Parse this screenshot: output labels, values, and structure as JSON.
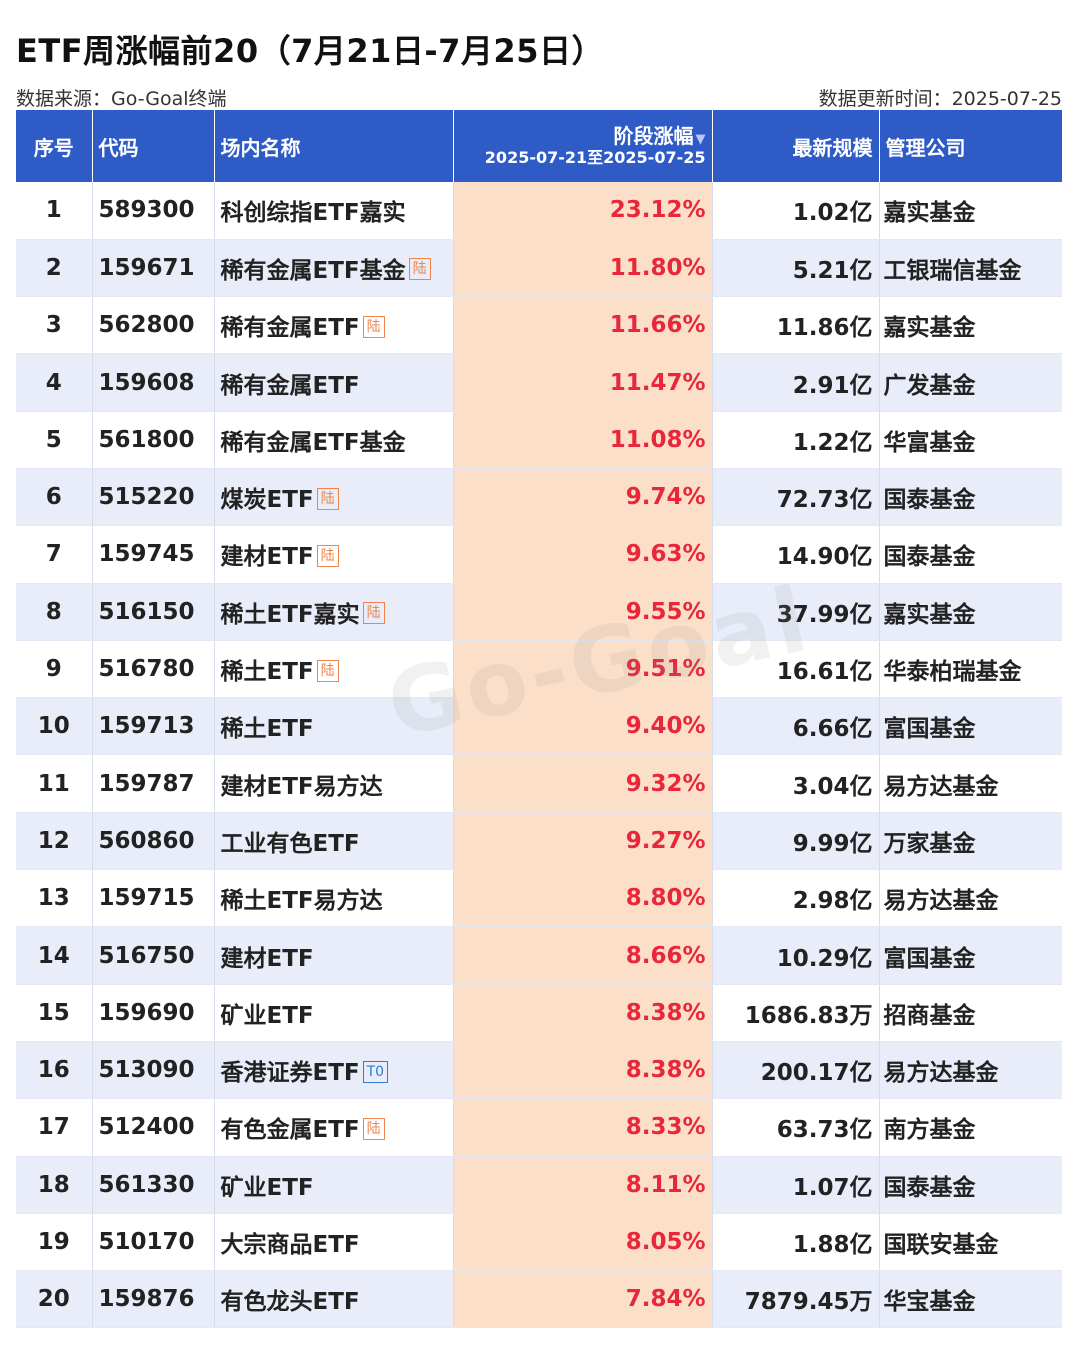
{
  "title": "ETF周涨幅前20（7月21日-7月25日）",
  "source": "数据来源：Go-Goal终端",
  "updated": "数据更新时间：2025-07-25",
  "watermark": "Go-Goal",
  "headers": {
    "idx": "序号",
    "code": "代码",
    "name": "场内名称",
    "change": "阶段涨幅",
    "change_sub": "2025-07-21至2025-07-25",
    "scale": "最新规模",
    "company": "管理公司"
  },
  "rows": [
    {
      "idx": "1",
      "code": "589300",
      "name": "科创综指ETF嘉实",
      "tag": "",
      "change": "23.12%",
      "scale": "1.02亿",
      "company": "嘉实基金"
    },
    {
      "idx": "2",
      "code": "159671",
      "name": "稀有金属ETF基金",
      "tag": "陆",
      "change": "11.80%",
      "scale": "5.21亿",
      "company": "工银瑞信基金"
    },
    {
      "idx": "3",
      "code": "562800",
      "name": "稀有金属ETF",
      "tag": "陆",
      "change": "11.66%",
      "scale": "11.86亿",
      "company": "嘉实基金"
    },
    {
      "idx": "4",
      "code": "159608",
      "name": "稀有金属ETF",
      "tag": "",
      "change": "11.47%",
      "scale": "2.91亿",
      "company": "广发基金"
    },
    {
      "idx": "5",
      "code": "561800",
      "name": "稀有金属ETF基金",
      "tag": "",
      "change": "11.08%",
      "scale": "1.22亿",
      "company": "华富基金"
    },
    {
      "idx": "6",
      "code": "515220",
      "name": "煤炭ETF",
      "tag": "陆",
      "change": "9.74%",
      "scale": "72.73亿",
      "company": "国泰基金"
    },
    {
      "idx": "7",
      "code": "159745",
      "name": "建材ETF",
      "tag": "陆",
      "change": "9.63%",
      "scale": "14.90亿",
      "company": "国泰基金"
    },
    {
      "idx": "8",
      "code": "516150",
      "name": "稀土ETF嘉实",
      "tag": "陆",
      "change": "9.55%",
      "scale": "37.99亿",
      "company": "嘉实基金"
    },
    {
      "idx": "9",
      "code": "516780",
      "name": "稀土ETF",
      "tag": "陆",
      "change": "9.51%",
      "scale": "16.61亿",
      "company": "华泰柏瑞基金"
    },
    {
      "idx": "10",
      "code": "159713",
      "name": "稀土ETF",
      "tag": "",
      "change": "9.40%",
      "scale": "6.66亿",
      "company": "富国基金"
    },
    {
      "idx": "11",
      "code": "159787",
      "name": "建材ETF易方达",
      "tag": "",
      "change": "9.32%",
      "scale": "3.04亿",
      "company": "易方达基金"
    },
    {
      "idx": "12",
      "code": "560860",
      "name": "工业有色ETF",
      "tag": "",
      "change": "9.27%",
      "scale": "9.99亿",
      "company": "万家基金"
    },
    {
      "idx": "13",
      "code": "159715",
      "name": "稀土ETF易方达",
      "tag": "",
      "change": "8.80%",
      "scale": "2.98亿",
      "company": "易方达基金"
    },
    {
      "idx": "14",
      "code": "516750",
      "name": "建材ETF",
      "tag": "",
      "change": "8.66%",
      "scale": "10.29亿",
      "company": "富国基金"
    },
    {
      "idx": "15",
      "code": "159690",
      "name": "矿业ETF",
      "tag": "",
      "change": "8.38%",
      "scale": "1686.83万",
      "company": "招商基金"
    },
    {
      "idx": "16",
      "code": "513090",
      "name": "香港证券ETF",
      "tag": "T0",
      "change": "8.38%",
      "scale": "200.17亿",
      "company": "易方达基金"
    },
    {
      "idx": "17",
      "code": "512400",
      "name": "有色金属ETF",
      "tag": "陆",
      "change": "8.33%",
      "scale": "63.73亿",
      "company": "南方基金"
    },
    {
      "idx": "18",
      "code": "561330",
      "name": "矿业ETF",
      "tag": "",
      "change": "8.11%",
      "scale": "1.07亿",
      "company": "国泰基金"
    },
    {
      "idx": "19",
      "code": "510170",
      "name": "大宗商品ETF",
      "tag": "",
      "change": "8.05%",
      "scale": "1.88亿",
      "company": "国联安基金"
    },
    {
      "idx": "20",
      "code": "159876",
      "name": "有色龙头ETF",
      "tag": "",
      "change": "7.84%",
      "scale": "7879.45万",
      "company": "华宝基金"
    }
  ]
}
